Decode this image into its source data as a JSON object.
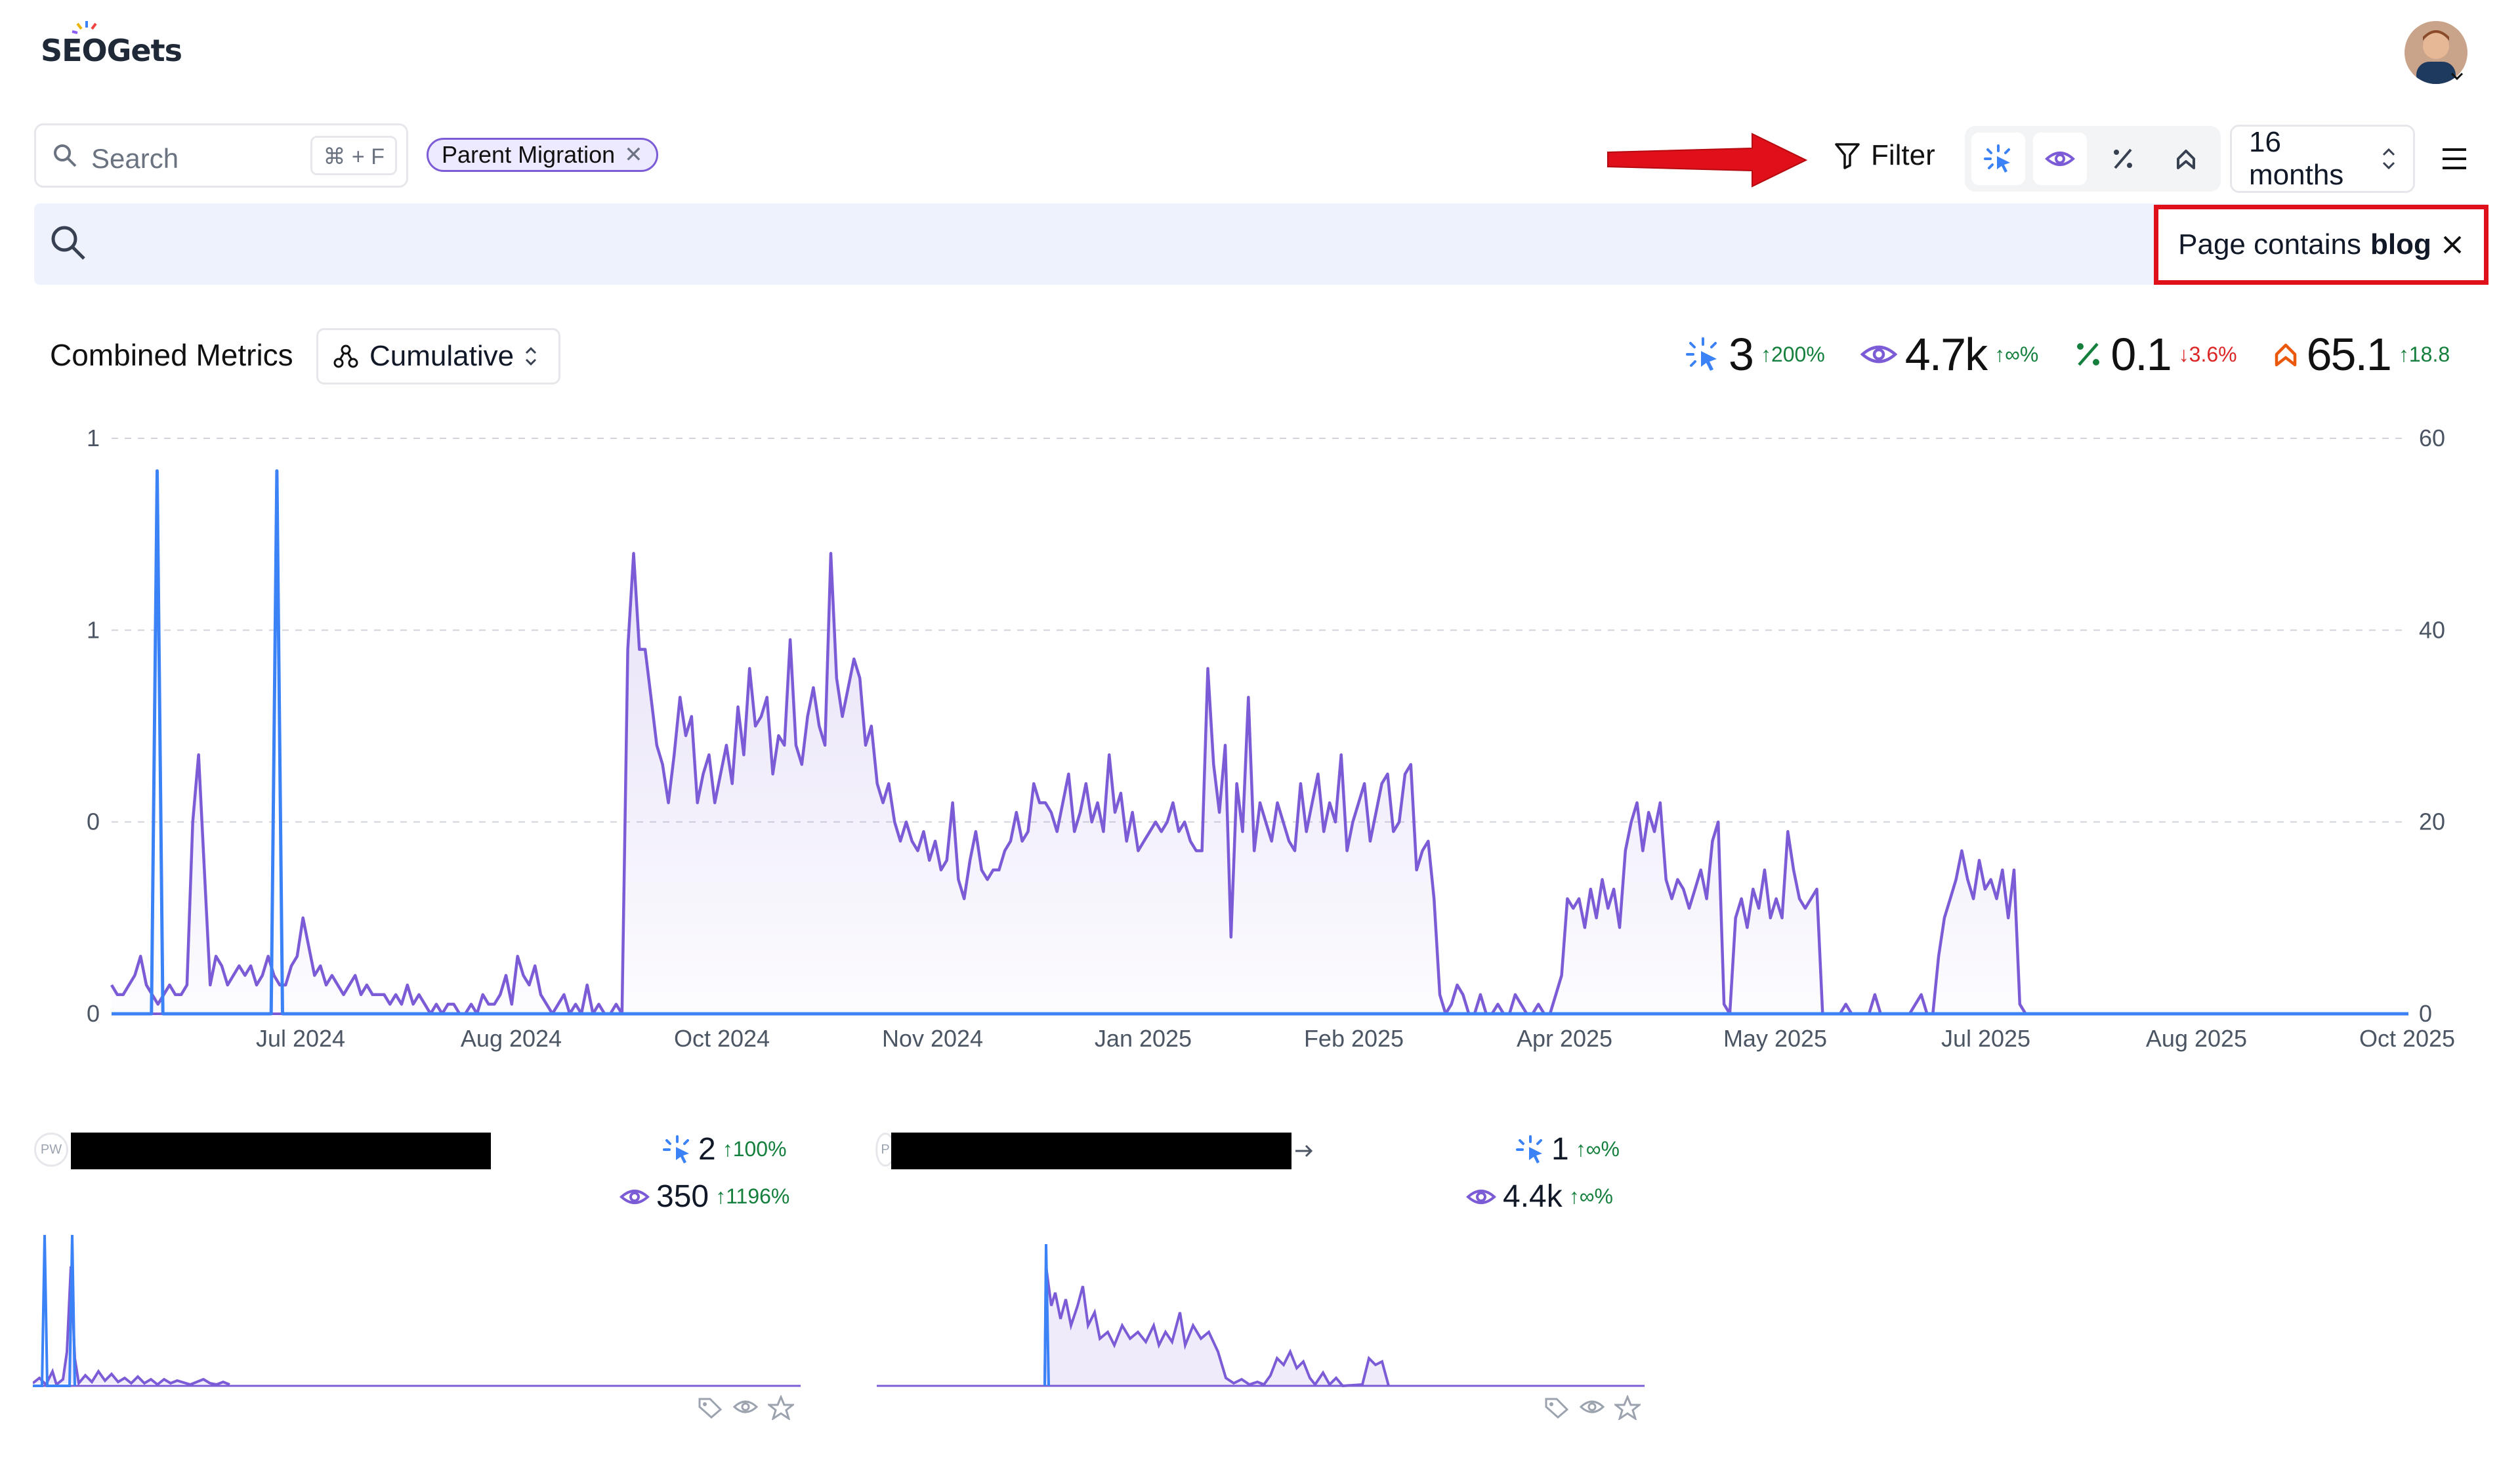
{
  "brand": {
    "name_left": "SEO",
    "name_right": "Gets"
  },
  "search": {
    "placeholder": "Search",
    "shortcut": "⌘ + F"
  },
  "chips": [
    {
      "label": "Parent Migration"
    }
  ],
  "toolbar": {
    "filter_label": "Filter",
    "range_label": "16 months"
  },
  "active_filter": {
    "prefix": "Page contains",
    "value": "blog"
  },
  "colors": {
    "clicks": "#3b82f6",
    "impressions": "#7c5cd6",
    "ctr": "#15803d",
    "position": "#ea580c",
    "alert": "#e0101a"
  },
  "section": {
    "title": "Combined Metrics",
    "mode_label": "Cumulative"
  },
  "kpis": [
    {
      "icon": "clicks-icon",
      "value": "3",
      "delta": "↑200%",
      "dir": "up"
    },
    {
      "icon": "impressions-icon",
      "value": "4.7k",
      "delta": "↑∞%",
      "dir": "up"
    },
    {
      "icon": "ctr-icon",
      "value": "0.1",
      "delta": "↓3.6%",
      "dir": "down"
    },
    {
      "icon": "position-icon",
      "value": "65.1",
      "delta": "↑18.8",
      "dir": "up"
    }
  ],
  "chart_data": {
    "type": "line",
    "x_labels": [
      "Jul 2024",
      "Aug 2024",
      "Oct 2024",
      "Nov 2024",
      "Jan 2025",
      "Feb 2025",
      "Apr 2025",
      "May 2025",
      "Jul 2025",
      "Aug 2025",
      "Oct 2025"
    ],
    "y_left_ticks": [
      "1",
      "1",
      "0",
      "0"
    ],
    "y_right_ticks": [
      "60",
      "40",
      "20",
      "0"
    ],
    "y_right_range": [
      0,
      60
    ],
    "grid": true,
    "series": [
      {
        "values": [
          3,
          2,
          2,
          3,
          4,
          6,
          3,
          2,
          1,
          2,
          3,
          2,
          2,
          3,
          20,
          27,
          15,
          3,
          6,
          5,
          3,
          4,
          5,
          4,
          5,
          3,
          4,
          6,
          4,
          3,
          3,
          5,
          6,
          10,
          7,
          4,
          5,
          3,
          4,
          3,
          2,
          3,
          4,
          2,
          3,
          2,
          2,
          2,
          1,
          2,
          1,
          3,
          1,
          2,
          1,
          0,
          1,
          0,
          1,
          1,
          0,
          0,
          1,
          0,
          2,
          1,
          1,
          2,
          4,
          1,
          6,
          4,
          3,
          5,
          2,
          1,
          0,
          1,
          2,
          0,
          1,
          0,
          3,
          0,
          1,
          0,
          0,
          1,
          0,
          38,
          48,
          38,
          38,
          33,
          28,
          26,
          22,
          27,
          33,
          29,
          31,
          22,
          25,
          27,
          22,
          25,
          28,
          24,
          32,
          27,
          36,
          30,
          31,
          33,
          25,
          29,
          28,
          39,
          28,
          26,
          31,
          34,
          30,
          28,
          48,
          35,
          31,
          34,
          37,
          35,
          28,
          30,
          24,
          22,
          24,
          20,
          18,
          20,
          18,
          17,
          19,
          16,
          18,
          15,
          16,
          22,
          14,
          12,
          16,
          19,
          15,
          14,
          15,
          15,
          17,
          18,
          21,
          18,
          19,
          24,
          22,
          22,
          21,
          19,
          22,
          25,
          19,
          21,
          24,
          20,
          22,
          19,
          27,
          21,
          23,
          18,
          21,
          17,
          18,
          19,
          20,
          19,
          20,
          22,
          19,
          20,
          18,
          17,
          17,
          36,
          26,
          21,
          28,
          8,
          24,
          19,
          33,
          17,
          22,
          20,
          18,
          22,
          20,
          18,
          17,
          24,
          19,
          22,
          25,
          19,
          22,
          20,
          27,
          17,
          20,
          22,
          24,
          18,
          21,
          24,
          25,
          19,
          20,
          25,
          26,
          15,
          17,
          18,
          12,
          2,
          0,
          1,
          3,
          2,
          0,
          0,
          2,
          0,
          0,
          1,
          0,
          0,
          2,
          1,
          0,
          0,
          1,
          0,
          0,
          2,
          4,
          12,
          11,
          12,
          9,
          13,
          10,
          14,
          11,
          13,
          9,
          17,
          20,
          22,
          17,
          21,
          19,
          22,
          14,
          12,
          14,
          13,
          11,
          13,
          15,
          12,
          18,
          20,
          1,
          0,
          10,
          12,
          9,
          13,
          11,
          15,
          10,
          12,
          10,
          19,
          15,
          12,
          11,
          12,
          13,
          0,
          0,
          0,
          0,
          1,
          0,
          0,
          0,
          0,
          2,
          0,
          0,
          0,
          0,
          0,
          0,
          1,
          2,
          0,
          0,
          6,
          10,
          12,
          14,
          17,
          14,
          12,
          16,
          13,
          14,
          12,
          15,
          10,
          15,
          1,
          0,
          0,
          0,
          0,
          0,
          0,
          0,
          0,
          0,
          0,
          0,
          0,
          0,
          0,
          0,
          0,
          0,
          0,
          0,
          0,
          0,
          0,
          0,
          0,
          0,
          0,
          0,
          0,
          0,
          0,
          0,
          0,
          0,
          0,
          0,
          0,
          0,
          0,
          0,
          0,
          0,
          0,
          0,
          0,
          0,
          0,
          0,
          0,
          0,
          0,
          0,
          0,
          0,
          0,
          0,
          0,
          0,
          0,
          0,
          0,
          0,
          0,
          0,
          0,
          0,
          0,
          0
        ]
      },
      {
        "values": [
          0,
          0,
          0,
          0,
          0,
          0,
          0,
          0,
          1,
          0,
          0,
          0,
          0,
          0,
          0,
          0,
          0,
          0,
          0,
          0,
          0,
          0,
          0,
          0,
          0,
          0,
          0,
          0,
          0,
          1,
          0,
          0,
          0,
          0,
          0,
          0,
          0,
          0,
          0,
          0,
          0,
          0,
          0,
          0,
          0,
          0,
          0,
          0,
          0,
          0,
          0,
          0,
          0,
          0,
          0,
          0,
          0,
          0,
          0,
          0,
          0,
          0,
          0,
          0,
          0,
          0,
          0,
          0,
          0,
          0,
          0,
          0,
          0,
          0,
          0,
          0,
          0,
          0,
          0,
          0,
          0,
          0,
          0,
          0,
          0,
          0,
          0,
          0,
          0,
          0,
          0,
          0,
          0,
          0,
          0,
          0,
          0,
          0,
          0,
          0,
          0,
          0,
          0,
          0,
          0,
          0,
          0,
          0,
          0,
          0,
          0,
          0,
          0,
          0,
          0,
          0,
          0,
          0,
          0,
          0,
          0,
          0,
          0,
          0,
          0,
          0,
          0,
          0,
          0,
          0,
          0,
          0,
          0,
          0,
          0,
          0,
          0,
          0,
          0,
          0,
          0,
          0,
          0,
          0,
          0,
          0,
          0,
          0,
          0,
          0,
          0,
          0,
          0,
          0,
          0,
          0,
          0,
          0,
          0,
          0,
          0,
          0,
          0,
          0,
          0,
          0,
          0,
          0,
          0,
          0,
          0,
          0,
          0,
          0,
          0,
          0,
          0,
          0,
          0,
          0,
          0,
          0,
          0,
          0,
          0,
          0,
          0,
          0,
          0,
          0,
          0,
          0,
          0,
          0,
          0,
          0,
          0,
          0,
          0,
          0,
          0,
          0,
          0,
          0,
          0,
          0,
          0,
          0,
          0,
          0,
          0,
          0,
          0,
          0,
          0,
          0,
          0,
          0,
          0,
          0,
          0,
          0,
          0,
          0,
          0,
          0,
          0,
          0,
          0,
          0,
          0,
          0,
          0,
          0,
          0,
          0,
          0,
          0,
          0,
          0,
          0,
          0,
          0,
          0,
          0,
          0,
          0,
          0,
          0,
          0,
          0,
          0,
          0,
          0,
          0,
          0,
          0,
          0,
          0,
          0,
          0,
          0,
          0,
          0,
          0,
          0,
          0,
          0,
          0,
          0,
          0,
          0,
          0,
          0,
          0,
          0,
          0,
          0,
          0,
          0,
          0,
          0,
          0,
          0,
          0,
          0,
          0,
          0,
          0,
          0,
          0,
          0,
          0,
          0,
          0,
          0,
          0,
          0,
          0,
          0,
          0,
          0,
          0,
          0,
          0,
          0,
          0,
          0,
          0,
          0,
          0,
          0,
          0,
          0,
          0,
          0,
          0,
          0,
          0,
          0,
          0,
          0,
          0,
          0,
          0,
          0,
          0,
          0,
          0,
          0,
          0,
          0,
          0,
          0,
          0,
          0,
          0,
          0,
          0,
          0,
          0,
          0,
          0,
          0,
          0,
          0,
          0,
          0,
          0,
          0,
          0,
          0,
          0,
          0,
          0,
          0,
          0,
          0,
          0,
          0,
          0,
          0,
          0,
          0,
          0,
          0,
          0,
          0,
          0,
          0,
          0,
          0,
          0,
          0,
          0,
          0,
          0,
          0,
          0,
          0,
          0,
          0,
          0,
          0,
          0,
          0,
          0,
          0,
          0,
          0,
          0,
          0,
          0,
          0,
          0,
          0,
          0,
          0,
          0,
          0,
          0,
          0,
          0,
          0
        ]
      }
    ]
  },
  "cards": [
    {
      "favicon": "PW",
      "clicks": "2",
      "clicks_delta": "↑100%",
      "impr": "350",
      "impr_delta": "↑1196%"
    },
    {
      "favicon": "P",
      "clicks": "1",
      "clicks_delta": "↑∞%",
      "impr": "4.4k",
      "impr_delta": "↑∞%"
    }
  ]
}
